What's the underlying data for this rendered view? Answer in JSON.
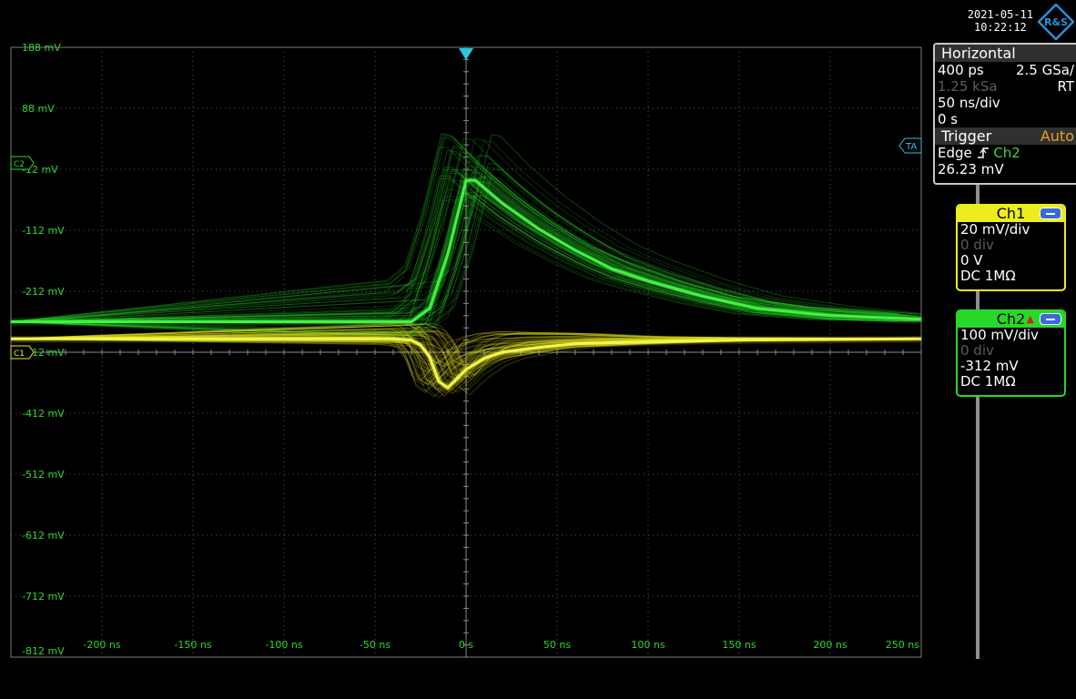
{
  "datetime": {
    "date": "2021-05-11",
    "time": "10:22:12"
  },
  "horizontal": {
    "title": "Horizontal",
    "resolution": "400 ps",
    "sample_rate": "2.5 GSa/",
    "record_length": "1.25 kSa",
    "mode": "RT",
    "time_scale": "50 ns/div",
    "position": "0 s"
  },
  "trigger": {
    "title": "Trigger",
    "mode": "Auto",
    "type": "Edge",
    "source": "Ch2",
    "level": "26.23 mV"
  },
  "ch1": {
    "title": "Ch1",
    "scale": "20 mV/div",
    "position": "0 div",
    "offset": "0 V",
    "coupling": "DC 1MΩ",
    "color": "#ecec20"
  },
  "ch2": {
    "title": "Ch2",
    "scale": "100 mV/div",
    "position": "0 div",
    "offset": "-312 mV",
    "coupling": "DC 1MΩ",
    "color": "#28d828"
  },
  "markers": {
    "ch2": "C2",
    "ch1": "C1",
    "trigger_level": "TA"
  },
  "logo_text": "R&S",
  "chart_data": {
    "type": "line",
    "y_ticks": [
      "188 mV",
      "88 mV",
      "-12 mV",
      "-112 mV",
      "-212 mV",
      "-312 mV",
      "-412 mV",
      "-512 mV",
      "-612 mV",
      "-712 mV",
      "-812 mV"
    ],
    "x_ticks": [
      "-200 ns",
      "-150 ns",
      "-100 ns",
      "-50 ns",
      "0 s",
      "50 ns",
      "100 ns",
      "150 ns",
      "200 ns",
      "250 ns"
    ],
    "xlim": [
      -250,
      250
    ],
    "ylim": [
      -812,
      188
    ],
    "grid": true,
    "series": [
      {
        "name": "Ch2",
        "color": "#28d828",
        "x": [
          -250,
          -50,
          -30,
          -20,
          -10,
          0,
          5,
          20,
          40,
          60,
          80,
          100,
          130,
          160,
          200,
          250
        ],
        "y": [
          -262,
          -262,
          -262,
          -240,
          -150,
          -30,
          -30,
          -68,
          -110,
          -145,
          -175,
          -195,
          -220,
          -240,
          -252,
          -258
        ]
      },
      {
        "name": "Ch1",
        "color": "#ecec20",
        "x": [
          -250,
          -40,
          -30,
          -25,
          -20,
          -15,
          -10,
          -5,
          0,
          10,
          20,
          40,
          60,
          100,
          150,
          250
        ],
        "y": [
          -290,
          -290,
          -292,
          -300,
          -320,
          -360,
          -370,
          -355,
          -340,
          -322,
          -312,
          -304,
          -298,
          -295,
          -292,
          -290
        ]
      }
    ]
  }
}
